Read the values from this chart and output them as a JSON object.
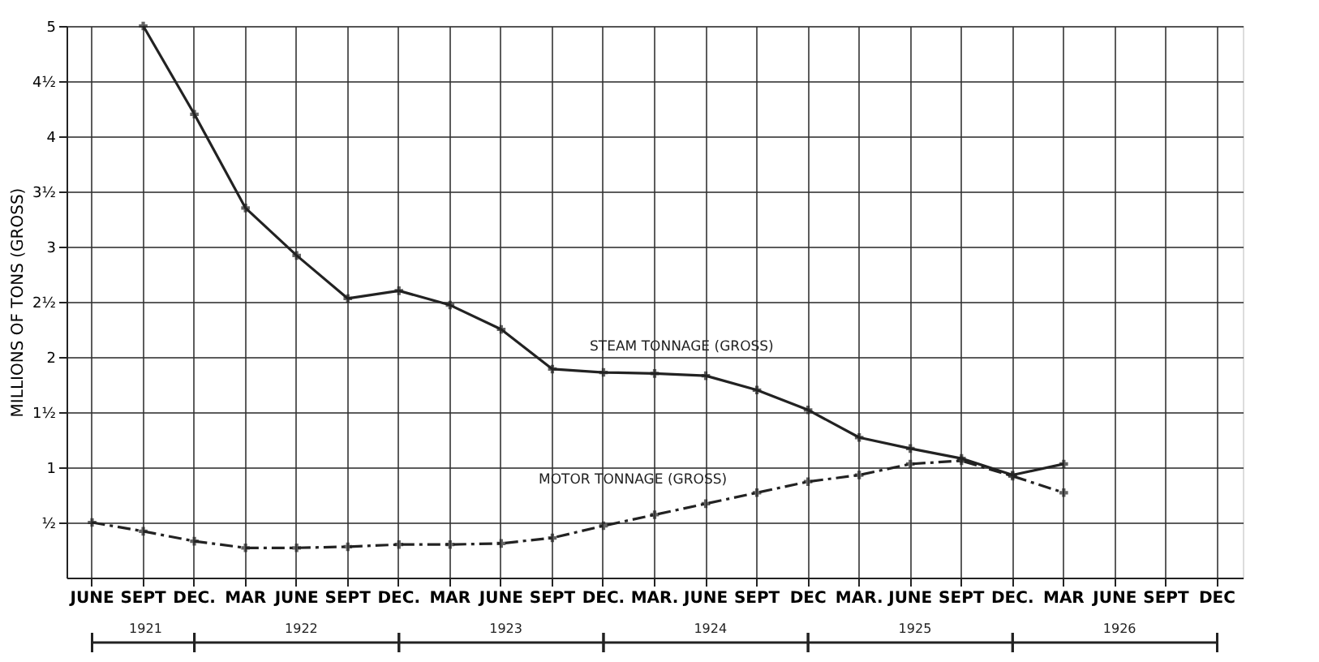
{
  "chart_data": {
    "type": "line",
    "categories": [
      "JUNE",
      "SEPT",
      "DEC.",
      "MAR",
      "JUNE",
      "SEPT",
      "DEC.",
      "MAR",
      "JUNE",
      "SEPT",
      "DEC.",
      "MAR.",
      "JUNE",
      "SEPT",
      "DEC",
      "MAR.",
      "JUNE",
      "SEPT",
      "DEC.",
      "MAR",
      "JUNE",
      "SEPT",
      "DEC"
    ],
    "ylabel": "MILLIONS OF TONS (GROSS)",
    "ylim": [
      0,
      5
    ],
    "yticks": [
      {
        "value": 0.5,
        "label": "½"
      },
      {
        "value": 1,
        "label": "1"
      },
      {
        "value": 1.5,
        "label": "1½"
      },
      {
        "value": 2,
        "label": "2"
      },
      {
        "value": 2.5,
        "label": "2½"
      },
      {
        "value": 3,
        "label": "3"
      },
      {
        "value": 3.5,
        "label": "3½"
      },
      {
        "value": 4,
        "label": "4"
      },
      {
        "value": 4.5,
        "label": "4½"
      },
      {
        "value": 5,
        "label": "5"
      }
    ],
    "grid": true,
    "series": [
      {
        "color": "#222222",
        "line_style": "solid",
        "marker": "cross",
        "values": [
          null,
          5.0,
          4.2,
          3.35,
          2.92,
          2.53,
          2.6,
          2.47,
          2.25,
          1.89,
          1.86,
          1.85,
          1.83,
          1.7,
          1.52,
          1.27,
          1.17,
          1.08,
          0.93,
          1.03,
          null,
          null,
          null
        ]
      },
      {
        "color": "#222222",
        "line_style": "dashed",
        "marker": "cross",
        "values": [
          0.5,
          0.42,
          0.33,
          0.27,
          0.27,
          0.28,
          0.3,
          0.3,
          0.31,
          0.36,
          0.47,
          0.57,
          0.67,
          0.77,
          0.87,
          0.93,
          1.03,
          1.06,
          0.92,
          0.77,
          null,
          null,
          null
        ]
      }
    ],
    "annotations": [
      "STEAM TONNAGE (GROSS)",
      "MOTOR TONNAGE (GROSS)",
      "1921",
      "1922",
      "1923",
      "1924",
      "1925",
      "1926"
    ]
  }
}
